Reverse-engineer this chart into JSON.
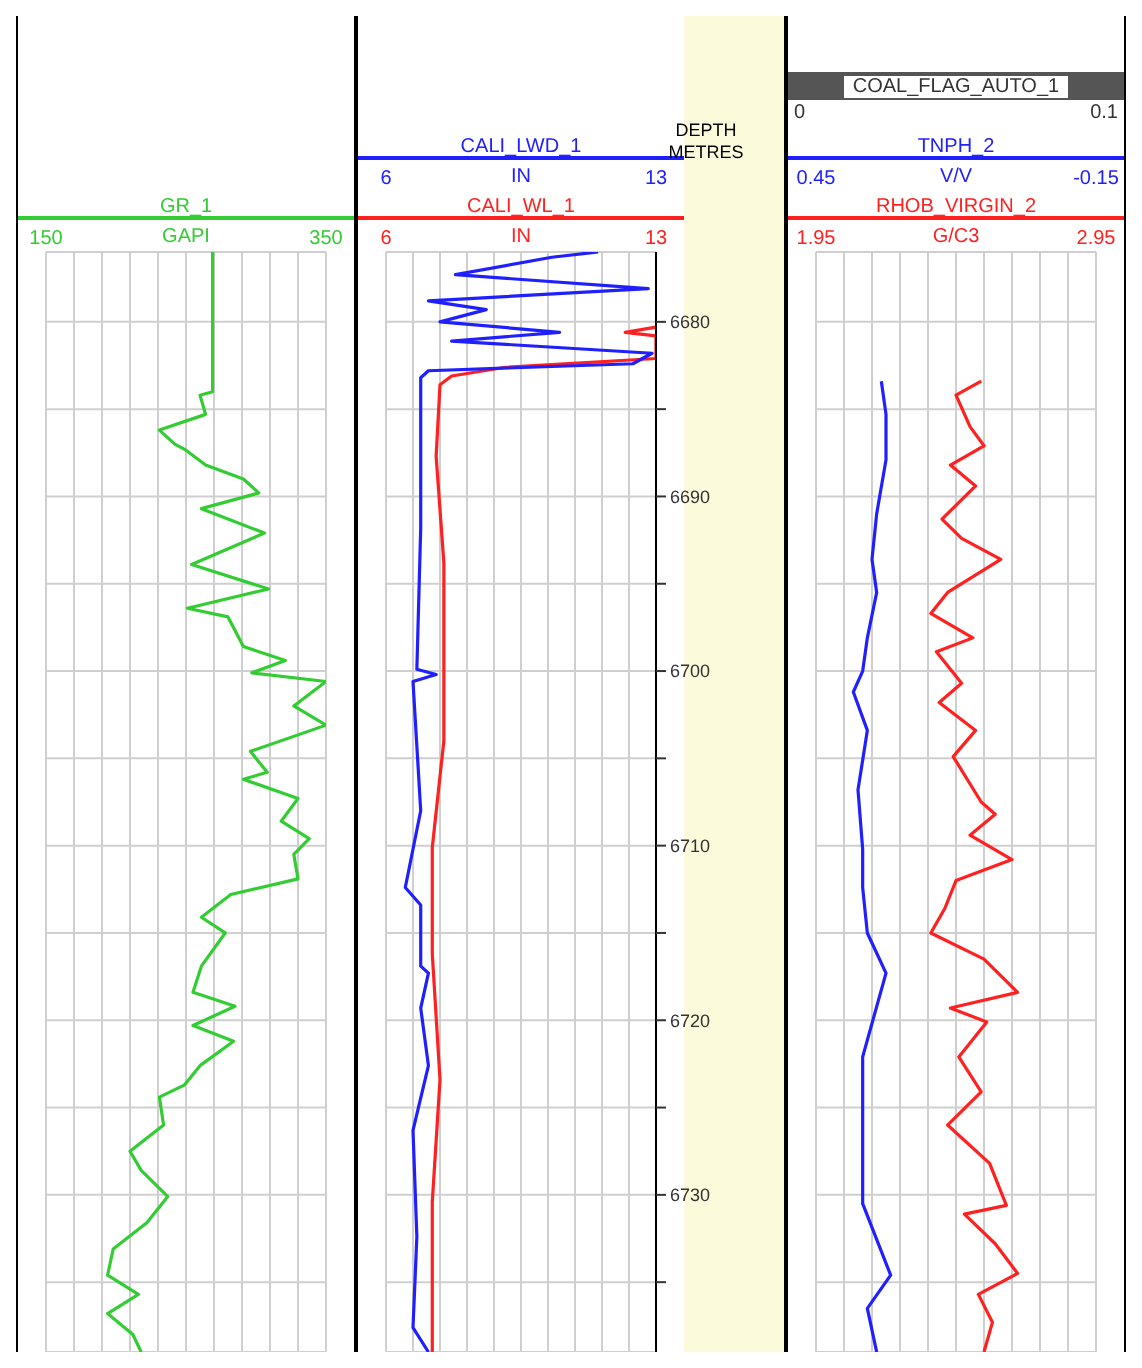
{
  "chart_data": [
    {
      "type": "line",
      "orientation": "horizontal",
      "grid": true,
      "tick_labels": "x",
      "xlabel": "GAPI",
      "xlim": [
        150,
        350
      ],
      "xticks": [
        150,
        {
          "value": 170,
          "label": null
        },
        {
          "value": 190,
          "label": null
        },
        {
          "value": 210,
          "label": null
        },
        {
          "value": 230,
          "label": null
        },
        {
          "value": 250,
          "label": null
        },
        {
          "value": 270,
          "label": null
        },
        {
          "value": 290,
          "label": null
        },
        {
          "value": 310,
          "label": null
        },
        {
          "value": 330,
          "label": null
        },
        350
      ],
      "ylim": [
        6739,
        6676
      ],
      "yticks": [
        6680,
        {
          "value": 6685,
          "label": null
        },
        6690,
        {
          "value": 6695,
          "label": null
        },
        6700,
        {
          "value": 6705,
          "label": null
        },
        6710,
        {
          "value": 6715,
          "label": null
        },
        6720,
        {
          "value": 6725,
          "label": null
        },
        6730,
        {
          "value": 6735,
          "label": null
        }
      ],
      "series": [
        {
          "name": "GR_1",
          "color": "#33cc33",
          "x": [
            6676.0,
            6684.0,
            6684.2,
            6685.3,
            6686.2,
            6687.0,
            6687.3,
            6688.2,
            6689.0,
            6689.8,
            6690.7,
            6692.1,
            6693.9,
            6695.3,
            6696.4,
            6696.9,
            6698.6,
            6699.4,
            6700.1,
            6700.6,
            6702.0,
            6703.1,
            6704.6,
            6705.8,
            6706.2,
            6707.3,
            6708.6,
            6709.6,
            6710.5,
            6711.9,
            6712.8,
            6714.1,
            6715.0,
            6716.9,
            6718.4,
            6719.2,
            6720.3,
            6721.2,
            6722.6,
            6723.7,
            6724.4,
            6726.0,
            6727.5,
            6728.6,
            6730.1,
            6731.6,
            6733.1,
            6734.6,
            6735.7,
            6736.8,
            6738.0,
            6739.0
          ],
          "values": [
            269,
            269,
            260,
            264,
            231,
            242,
            249,
            264,
            291,
            302,
            261,
            306,
            254,
            309,
            251,
            280,
            291,
            321,
            297,
            350,
            327,
            350,
            296,
            308,
            291,
            330,
            318,
            338,
            327,
            330,
            282,
            261,
            278,
            261,
            255,
            285,
            255,
            284,
            260,
            249,
            231,
            234,
            210,
            218,
            237,
            222,
            198,
            194,
            216,
            194,
            212,
            218
          ]
        }
      ]
    },
    {
      "type": "line",
      "orientation": "horizontal",
      "grid": true,
      "ylabel": "DEPTH METRES",
      "xlabel": "IN",
      "xlim": [
        6,
        13
      ],
      "xticks": [
        6,
        {
          "value": 6.7,
          "label": null
        },
        {
          "value": 7.4,
          "label": null
        },
        {
          "value": 8.1,
          "label": null
        },
        {
          "value": 8.8,
          "label": null
        },
        {
          "value": 9.5,
          "label": null
        },
        {
          "value": 10.2,
          "label": null
        },
        {
          "value": 10.9,
          "label": null
        },
        {
          "value": 11.6,
          "label": null
        },
        {
          "value": 12.3,
          "label": null
        },
        13
      ],
      "x2label": "IN",
      "x2lim": [
        6,
        13
      ],
      "x2ticks": [
        6,
        13
      ],
      "ylim": [
        6739,
        6676
      ],
      "yticks": [
        6680,
        {
          "value": 6685,
          "label": null
        },
        6690,
        {
          "value": 6695,
          "label": null
        },
        6700,
        {
          "value": 6705,
          "label": null
        },
        6710,
        {
          "value": 6715,
          "label": null
        },
        6720,
        {
          "value": 6725,
          "label": null
        },
        6730,
        {
          "value": 6735,
          "label": null
        }
      ],
      "series": [
        {
          "name": "CALI_WL_1",
          "color": "#ff2020",
          "x": [
            6680.3,
            6680.6,
            6680.8,
            6682.1,
            6682.6,
            6683.1,
            6683.6,
            6687.7,
            6693.8,
            6704.0,
            6710.1,
            6716.2,
            6723.4,
            6730.4,
            6739.0
          ],
          "values": [
            13.0,
            12.2,
            13.0,
            13.0,
            9.1,
            7.7,
            7.4,
            7.3,
            7.5,
            7.5,
            7.2,
            7.2,
            7.4,
            7.2,
            7.2
          ]
        },
        {
          "name": "CALI_LWD_1",
          "color": "#2020ff",
          "axis": "x2",
          "x": [
            6676.0,
            6676.3,
            6677.3,
            6678.1,
            6678.8,
            6679.3,
            6680.0,
            6680.6,
            6681.1,
            6681.8,
            6682.4,
            6682.8,
            6683.2,
            6691.8,
            6699.9,
            6700.2,
            6700.6,
            6708.0,
            6712.4,
            6713.4,
            6716.9,
            6717.3,
            6719.3,
            6722.6,
            6726.3,
            6732.4,
            6737.6,
            6739.0
          ],
          "values": [
            11.5,
            10.3,
            7.8,
            12.8,
            7.1,
            8.6,
            7.4,
            10.5,
            7.7,
            12.9,
            12.4,
            7.1,
            6.9,
            6.9,
            6.8,
            7.3,
            6.7,
            6.9,
            6.5,
            6.9,
            6.9,
            7.1,
            6.9,
            7.1,
            6.7,
            6.8,
            6.7,
            7.1
          ]
        }
      ]
    },
    {
      "type": "line",
      "orientation": "horizontal",
      "grid": true,
      "tick_labels": "x",
      "xlabel": "G/C3",
      "xlim": [
        1.95,
        2.95
      ],
      "xticks": [
        1.95,
        {
          "value": 2.05,
          "label": null
        },
        {
          "value": 2.15,
          "label": null
        },
        {
          "value": 2.25,
          "label": null
        },
        {
          "value": 2.35,
          "label": null
        },
        {
          "value": 2.45,
          "label": null
        },
        {
          "value": 2.55,
          "label": null
        },
        {
          "value": 2.65,
          "label": null
        },
        {
          "value": 2.75,
          "label": null
        },
        {
          "value": 2.85,
          "label": null
        },
        2.95
      ],
      "x2label": "V/V",
      "x2lim": [
        0.45,
        -0.15
      ],
      "x2ticks": [
        0.45,
        -0.15
      ],
      "annotations": [
        "COAL_FLAG_AUTO_1",
        "0",
        "0.1"
      ],
      "ylim": [
        6739,
        6676
      ],
      "yticks": [
        6680,
        {
          "value": 6685,
          "label": null
        },
        6690,
        {
          "value": 6695,
          "label": null
        },
        6700,
        {
          "value": 6705,
          "label": null
        },
        6710,
        {
          "value": 6715,
          "label": null
        },
        6720,
        {
          "value": 6725,
          "label": null
        },
        6730,
        {
          "value": 6735,
          "label": null
        }
      ],
      "series": [
        {
          "name": "RHOB_VIRGIN_2",
          "color": "#ff2020",
          "x": [
            6683.4,
            6684.2,
            6686.0,
            6687.1,
            6688.2,
            6689.4,
            6691.3,
            6692.4,
            6693.6,
            6695.5,
            6696.7,
            6698.1,
            6698.9,
            6700.7,
            6701.8,
            6703.4,
            6704.9,
            6707.5,
            6708.2,
            6709.4,
            6710.8,
            6712.0,
            6713.6,
            6715.0,
            6716.5,
            6718.4,
            6719.3,
            6720.1,
            6722.1,
            6724.1,
            6726.0,
            6728.2,
            6730.6,
            6731.1,
            6732.8,
            6734.5,
            6735.7,
            6737.3,
            6739.0
          ],
          "values": [
            2.54,
            2.45,
            2.5,
            2.55,
            2.43,
            2.52,
            2.4,
            2.47,
            2.61,
            2.42,
            2.36,
            2.51,
            2.38,
            2.47,
            2.39,
            2.52,
            2.44,
            2.54,
            2.59,
            2.5,
            2.65,
            2.45,
            2.41,
            2.36,
            2.55,
            2.67,
            2.43,
            2.56,
            2.46,
            2.54,
            2.42,
            2.57,
            2.63,
            2.48,
            2.59,
            2.67,
            2.53,
            2.58,
            2.55
          ]
        },
        {
          "name": "TNPH_2",
          "color": "#2020ff",
          "axis": "x2",
          "x": [
            6683.4,
            6685.3,
            6687.9,
            6691.0,
            6693.6,
            6695.5,
            6698.1,
            6700.0,
            6701.2,
            6703.4,
            6706.8,
            6710.2,
            6712.4,
            6715.0,
            6717.3,
            6722.1,
            6726.3,
            6730.5,
            6734.6,
            6736.5,
            6739.0
          ],
          "values": [
            0.31,
            0.3,
            0.3,
            0.32,
            0.33,
            0.32,
            0.34,
            0.35,
            0.37,
            0.34,
            0.36,
            0.35,
            0.35,
            0.34,
            0.3,
            0.35,
            0.35,
            0.35,
            0.29,
            0.34,
            0.32
          ]
        }
      ]
    }
  ]
}
